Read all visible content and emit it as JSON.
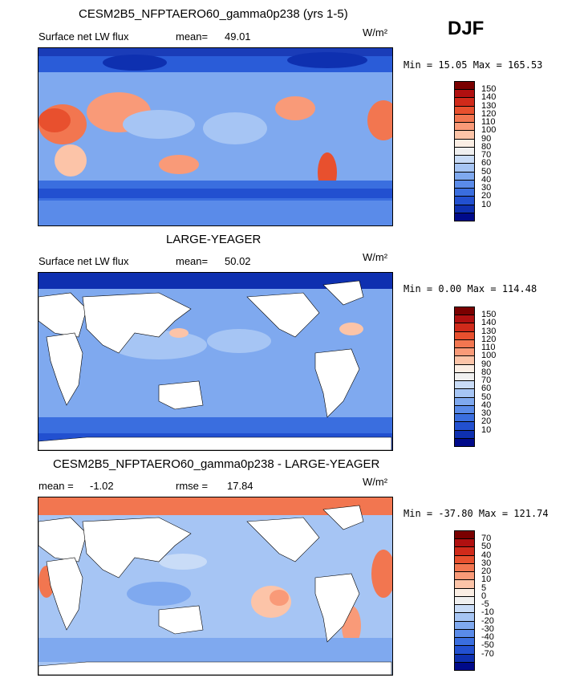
{
  "season": "DJF",
  "units": "W/m²",
  "panels": [
    {
      "id": "model",
      "title": "CESM2B5_NFPTAERO60_gamma0p238 (yrs 1-5)",
      "left_label": "Surface net LW flux",
      "mean_label": "mean=",
      "mean_value": "49.01",
      "minmax": "Min =  15.05 Max = 165.53",
      "colorbar": {
        "colors": [
          "#7a0000",
          "#b01010",
          "#d02a1a",
          "#e8502e",
          "#f27650",
          "#f99a78",
          "#fcc4a8",
          "#fbeee4",
          "#f0f0f0",
          "#c9dcf7",
          "#a6c5f4",
          "#7fa9ef",
          "#5a8be9",
          "#3a6edf",
          "#2250d0",
          "#0e30b0",
          "#000a8a"
        ],
        "labels": [
          "150",
          "140",
          "130",
          "120",
          "110",
          "100",
          "90",
          "80",
          "70",
          "60",
          "50",
          "40",
          "30",
          "20",
          "10"
        ]
      }
    },
    {
      "id": "obs",
      "title": "LARGE-YEAGER",
      "left_label": "Surface net LW flux",
      "mean_label": "mean=",
      "mean_value": "50.02",
      "minmax": "Min =   0.00 Max = 114.48",
      "colorbar": {
        "colors": [
          "#7a0000",
          "#b01010",
          "#d02a1a",
          "#e8502e",
          "#f27650",
          "#f99a78",
          "#fcc4a8",
          "#fbeee4",
          "#f0f0f0",
          "#c9dcf7",
          "#a6c5f4",
          "#7fa9ef",
          "#5a8be9",
          "#3a6edf",
          "#2250d0",
          "#0e30b0",
          "#000a8a"
        ],
        "labels": [
          "150",
          "140",
          "130",
          "120",
          "110",
          "100",
          "90",
          "80",
          "70",
          "60",
          "50",
          "40",
          "30",
          "20",
          "10"
        ]
      }
    },
    {
      "id": "diff",
      "title": "CESM2B5_NFPTAERO60_gamma0p238 - LARGE-YEAGER",
      "left_label": "mean =",
      "mean_value": "-1.02",
      "rmse_label": "rmse =",
      "rmse_value": "17.84",
      "minmax": "Min = -37.80 Max = 121.74",
      "colorbar": {
        "colors": [
          "#7a0000",
          "#b01010",
          "#d02a1a",
          "#e8502e",
          "#f27650",
          "#f99a78",
          "#fcc4a8",
          "#fbeee4",
          "#f0f0f0",
          "#c9dcf7",
          "#a6c5f4",
          "#7fa9ef",
          "#5a8be9",
          "#3a6edf",
          "#2250d0",
          "#0e30b0",
          "#000a8a"
        ],
        "labels": [
          "70",
          "50",
          "40",
          "30",
          "20",
          "10",
          "5",
          "0",
          "-5",
          "-10",
          "-20",
          "-30",
          "-40",
          "-50",
          "-70"
        ]
      }
    }
  ]
}
